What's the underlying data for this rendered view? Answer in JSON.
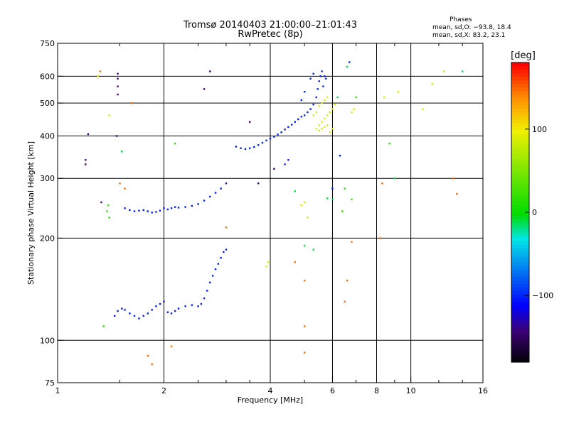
{
  "header": {
    "title_line1": "Tromsø 20140403 21:00:00–21:01:43",
    "title_line2": "RwPretec (8p)"
  },
  "stats": {
    "title": "Phases",
    "line1": "mean, sd,O: −93.8, 18.4",
    "line2": "mean, sd,X:  83.2, 23.1"
  },
  "colorbar": {
    "label": "[deg]",
    "ticks": [
      {
        "value": 100,
        "label": "100"
      },
      {
        "value": 0,
        "label": "0"
      },
      {
        "value": -100,
        "label": "−100"
      }
    ],
    "range": [
      -180,
      180
    ]
  },
  "chart_data": {
    "type": "scatter",
    "title": "Tromsø 20140403 21:00:00–21:01:43",
    "subtitle": "RwPretec (8p)",
    "xlabel": "Frequency [MHz]",
    "ylabel": "Stationary phase Virtual Height [km]",
    "xscale": "log",
    "yscale": "log",
    "xlim": [
      1,
      16
    ],
    "ylim": [
      75,
      750
    ],
    "xticks": [
      {
        "value": 1,
        "label": "1"
      },
      {
        "value": 2,
        "label": "2"
      },
      {
        "value": 4,
        "label": "4"
      },
      {
        "value": 6,
        "label": "6"
      },
      {
        "value": 8,
        "label": "8"
      },
      {
        "value": 10,
        "label": "10"
      },
      {
        "value": 16,
        "label": "16"
      }
    ],
    "yticks": [
      {
        "value": 75,
        "label": "75"
      },
      {
        "value": 100,
        "label": "100"
      },
      {
        "value": 200,
        "label": "200"
      },
      {
        "value": 300,
        "label": "300"
      },
      {
        "value": 400,
        "label": "400"
      },
      {
        "value": 500,
        "label": "500"
      },
      {
        "value": 600,
        "label": "600"
      },
      {
        "value": 750,
        "label": "750"
      }
    ],
    "vgrid": [
      2,
      4,
      6,
      8,
      10
    ],
    "hgrid": [
      100,
      200,
      300,
      400,
      500,
      600
    ],
    "grid": true,
    "color_by": "phase [deg]",
    "series": [
      {
        "points": [
          [
            1.45,
            118
          ],
          [
            1.48,
            122
          ],
          [
            1.52,
            124
          ],
          [
            1.55,
            123
          ],
          [
            1.6,
            120
          ],
          [
            1.65,
            118
          ],
          [
            1.7,
            116
          ],
          [
            1.75,
            118
          ],
          [
            1.8,
            120
          ],
          [
            1.85,
            123
          ],
          [
            1.9,
            126
          ],
          [
            1.95,
            128
          ],
          [
            2.0,
            130
          ],
          [
            2.05,
            121
          ],
          [
            2.1,
            120
          ],
          [
            2.15,
            122
          ],
          [
            2.2,
            124
          ],
          [
            2.3,
            126
          ],
          [
            2.4,
            127
          ],
          [
            2.5,
            126
          ],
          [
            2.55,
            128
          ],
          [
            2.6,
            133
          ],
          [
            2.65,
            140
          ],
          [
            2.7,
            148
          ],
          [
            2.75,
            155
          ],
          [
            2.8,
            162
          ],
          [
            2.85,
            168
          ],
          [
            2.9,
            175
          ],
          [
            2.95,
            182
          ],
          [
            3.0,
            185
          ],
          [
            1.55,
            245
          ],
          [
            1.6,
            242
          ],
          [
            1.65,
            240
          ],
          [
            1.7,
            241
          ],
          [
            1.75,
            242
          ],
          [
            1.8,
            240
          ],
          [
            1.85,
            238
          ],
          [
            1.9,
            239
          ],
          [
            1.95,
            241
          ],
          [
            2.0,
            245
          ],
          [
            2.05,
            243
          ],
          [
            2.1,
            245
          ],
          [
            2.15,
            247
          ],
          [
            2.2,
            246
          ],
          [
            2.3,
            247
          ],
          [
            2.4,
            249
          ],
          [
            2.5,
            252
          ],
          [
            2.6,
            258
          ],
          [
            2.7,
            265
          ],
          [
            2.8,
            272
          ],
          [
            2.9,
            280
          ],
          [
            3.0,
            290
          ],
          [
            3.2,
            372
          ],
          [
            3.3,
            368
          ],
          [
            3.4,
            366
          ],
          [
            3.5,
            368
          ],
          [
            3.6,
            371
          ],
          [
            3.7,
            376
          ],
          [
            3.8,
            382
          ],
          [
            3.9,
            388
          ],
          [
            4.0,
            393
          ],
          [
            4.1,
            398
          ],
          [
            4.2,
            404
          ],
          [
            4.3,
            410
          ],
          [
            4.4,
            418
          ],
          [
            4.5,
            425
          ],
          [
            4.6,
            432
          ],
          [
            4.7,
            440
          ],
          [
            4.8,
            448
          ],
          [
            4.9,
            456
          ],
          [
            5.0,
            460
          ],
          [
            5.1,
            470
          ],
          [
            5.2,
            480
          ],
          [
            5.3,
            495
          ],
          [
            5.4,
            520
          ],
          [
            5.45,
            550
          ],
          [
            5.5,
            580
          ],
          [
            5.55,
            600
          ],
          [
            5.6,
            620
          ],
          [
            5.65,
            560
          ],
          [
            5.7,
            600
          ],
          [
            5.75,
            590
          ],
          [
            4.9,
            510
          ],
          [
            5.0,
            540
          ],
          [
            5.2,
            590
          ],
          [
            5.3,
            610
          ],
          [
            4.4,
            330
          ],
          [
            4.5,
            340
          ],
          [
            6.7,
            660
          ],
          [
            6.3,
            350
          ],
          [
            6.0,
            280
          ]
        ],
        "phase": -100
      },
      {
        "points": [
          [
            5.4,
            420
          ],
          [
            5.5,
            430
          ],
          [
            5.6,
            440
          ],
          [
            5.7,
            450
          ],
          [
            5.8,
            460
          ],
          [
            5.9,
            470
          ],
          [
            6.0,
            480
          ],
          [
            6.1,
            495
          ],
          [
            5.5,
            415
          ],
          [
            5.6,
            420
          ],
          [
            5.7,
            425
          ],
          [
            5.8,
            430
          ],
          [
            5.9,
            410
          ],
          [
            6.0,
            420
          ],
          [
            5.3,
            460
          ],
          [
            5.4,
            470
          ],
          [
            5.5,
            490
          ],
          [
            5.6,
            500
          ],
          [
            5.7,
            510
          ],
          [
            5.8,
            520
          ],
          [
            6.8,
            470
          ],
          [
            6.9,
            480
          ],
          [
            4.9,
            250
          ],
          [
            5.0,
            255
          ],
          [
            5.1,
            230
          ],
          [
            3.9,
            165
          ],
          [
            3.95,
            170
          ],
          [
            8.4,
            520
          ],
          [
            9.2,
            540
          ],
          [
            10.8,
            480
          ],
          [
            12.4,
            620
          ],
          [
            11.5,
            570
          ],
          [
            1.3,
            600
          ],
          [
            1.4,
            460
          ]
        ],
        "phase": 90
      },
      {
        "points": [
          [
            1.38,
            240
          ],
          [
            1.39,
            250
          ],
          [
            1.4,
            230
          ],
          [
            1.35,
            110
          ],
          [
            6.8,
            260
          ],
          [
            6.5,
            280
          ],
          [
            8.7,
            380
          ],
          [
            7.0,
            520
          ],
          [
            2.15,
            380
          ],
          [
            6.4,
            240
          ]
        ],
        "phase": 20
      },
      {
        "points": [
          [
            1.52,
            360
          ],
          [
            6.2,
            520
          ],
          [
            6.6,
            640
          ],
          [
            4.7,
            275
          ],
          [
            9.0,
            300
          ],
          [
            6.0,
            260
          ],
          [
            5.8,
            262
          ],
          [
            14.0,
            620
          ],
          [
            5.3,
            185
          ],
          [
            5.0,
            190
          ]
        ],
        "phase": -10
      },
      {
        "points": [
          [
            1.5,
            290
          ],
          [
            1.55,
            280
          ],
          [
            1.62,
            500
          ],
          [
            1.8,
            90
          ],
          [
            1.85,
            85
          ],
          [
            2.1,
            96
          ],
          [
            3.0,
            215
          ],
          [
            5.0,
            92
          ],
          [
            5.0,
            110
          ],
          [
            5.0,
            150
          ],
          [
            6.8,
            195
          ],
          [
            6.6,
            150
          ],
          [
            6.5,
            130
          ],
          [
            8.2,
            200
          ],
          [
            8.3,
            290
          ],
          [
            13.5,
            270
          ],
          [
            13.2,
            300
          ],
          [
            4.7,
            170
          ],
          [
            1.32,
            620
          ]
        ],
        "phase": 150
      },
      {
        "points": [
          [
            1.48,
            610
          ],
          [
            1.48,
            590
          ],
          [
            1.48,
            560
          ],
          [
            1.48,
            530
          ],
          [
            1.47,
            400
          ],
          [
            1.22,
            405
          ],
          [
            1.2,
            340
          ],
          [
            1.2,
            330
          ],
          [
            2.7,
            620
          ],
          [
            2.6,
            550
          ],
          [
            1.33,
            255
          ],
          [
            3.5,
            440
          ],
          [
            3.7,
            290
          ],
          [
            4.1,
            320
          ]
        ],
        "phase": -140
      }
    ]
  }
}
